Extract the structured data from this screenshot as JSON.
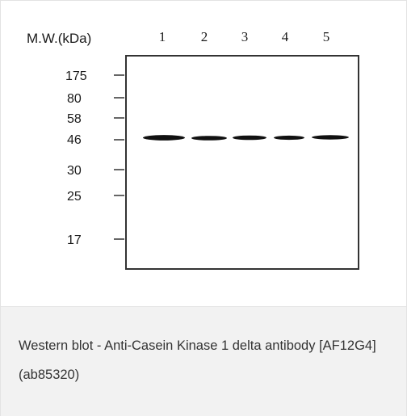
{
  "figure": {
    "mw_header": "M.W.(kDa)",
    "lanes": [
      "1",
      "2",
      "3",
      "4",
      "5"
    ],
    "markers": [
      "175",
      "80",
      "58",
      "46",
      "30",
      "25",
      "17"
    ],
    "band_color": "#111111",
    "frame_color": "#333333"
  },
  "caption": {
    "text": "Western blot - Anti-Casein Kinase 1 delta antibody [AF12G4] (ab85320)"
  }
}
